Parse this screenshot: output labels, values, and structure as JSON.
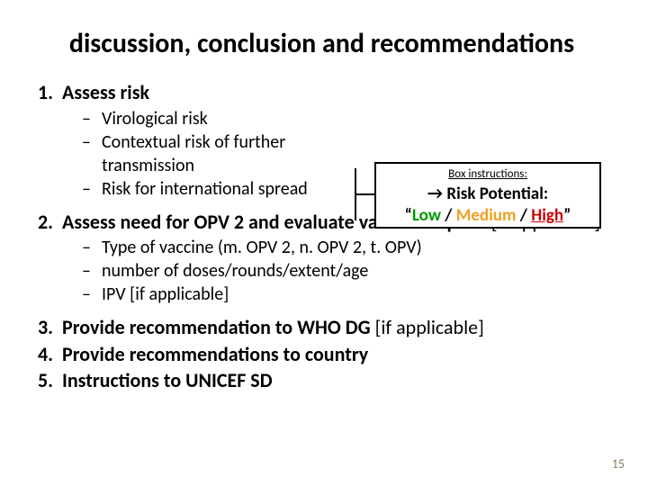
{
  "title": "discussion, conclusion and recommendations",
  "items": [
    {
      "num": "1.",
      "text": "Assess risk",
      "sub": [
        "Virological risk",
        "Contextual risk of further transmission",
        "Risk for international spread"
      ],
      "applicable": ""
    },
    {
      "num": "2.",
      "text": "Assess need for OPV 2 and evaluate vaccine request",
      "applicable": " [if applicable]",
      "sub": [
        "Type of vaccine (m. OPV 2, n. OPV 2, t. OPV)",
        " number of doses/rounds/extent/age",
        "IPV [if applicable]"
      ]
    },
    {
      "num": "3.",
      "text": "Provide recommendation to WHO DG",
      "applicable": " [if applicable]"
    },
    {
      "num": "4.",
      "text": "Provide recommendations to country",
      "applicable": ""
    },
    {
      "num": "5.",
      "text": "Instructions to UNICEF SD",
      "applicable": ""
    }
  ],
  "callout": {
    "instr_label": "Box instructions:",
    "arrow_line": "→ Risk Potential:",
    "quote_open": "“",
    "quote_close": "”",
    "low": "Low",
    "med": "Medium",
    "high": "High",
    "sep": " / "
  },
  "page_number": "15",
  "colors": {
    "low": "#009900",
    "medium": "#f0a020",
    "high": "#cc0000"
  }
}
